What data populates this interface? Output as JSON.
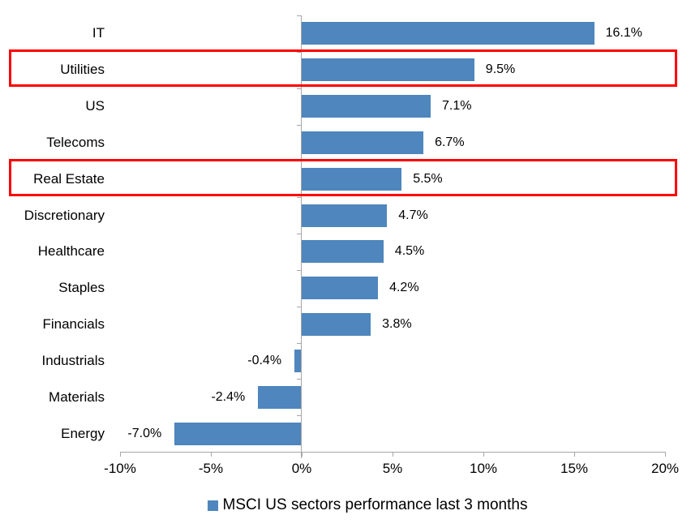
{
  "chart_data": {
    "type": "bar",
    "orientation": "horizontal",
    "title": "",
    "categories": [
      "IT",
      "Utilities",
      "US",
      "Telecoms",
      "Real Estate",
      "Discretionary",
      "Healthcare",
      "Staples",
      "Financials",
      "Industrials",
      "Materials",
      "Energy"
    ],
    "values": [
      16.1,
      9.5,
      7.1,
      6.7,
      5.5,
      4.7,
      4.5,
      4.2,
      3.8,
      -0.4,
      -2.4,
      -7.0
    ],
    "value_labels": [
      "16.1%",
      "9.5%",
      "7.1%",
      "6.7%",
      "5.5%",
      "4.7%",
      "4.5%",
      "4.2%",
      "3.8%",
      "-0.4%",
      "-2.4%",
      "-7.0%"
    ],
    "highlighted_categories": [
      "Utilities",
      "Real Estate"
    ],
    "x_tick_labels": [
      "-10%",
      "-5%",
      "0%",
      "5%",
      "10%",
      "15%",
      "20%"
    ],
    "x_tick_values": [
      -10,
      -5,
      0,
      5,
      10,
      15,
      20
    ],
    "xlim": [
      -10,
      20
    ],
    "grid": "off",
    "legend_position": "bottom-center",
    "legend_label": "MSCI US sectors performance last 3 months",
    "colors": {
      "bar": "#4E86BD",
      "highlight_border": "#FF0000",
      "axis": "#A6A6A6",
      "text": "#000000",
      "background": "#FFFFFF"
    }
  }
}
